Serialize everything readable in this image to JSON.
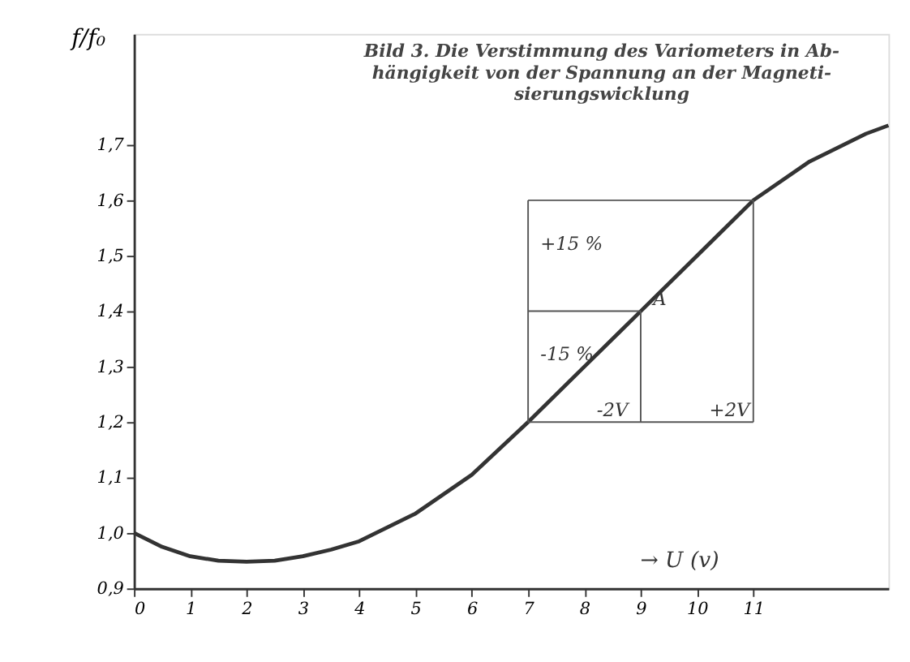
{
  "chart_data": {
    "type": "line",
    "title": "Bild 3. Die Verstimmung des Variometers in Ab-\nhängigkeit von der Spannung an der Magneti-\nsierungswicklung",
    "xlabel": "→ U (v)",
    "ylabel": "f/f₀",
    "series": [
      {
        "color": "#333333",
        "x": [
          0,
          0.5,
          1,
          1.5,
          2,
          2.5,
          3,
          3.5,
          4,
          5,
          6,
          7,
          8,
          9,
          10,
          11,
          12,
          13,
          13.4
        ],
        "values": [
          1.0,
          0.975,
          0.958,
          0.95,
          0.948,
          0.95,
          0.958,
          0.97,
          0.985,
          1.035,
          1.105,
          1.2,
          1.3,
          1.4,
          1.5,
          1.6,
          1.67,
          1.72,
          1.735
        ]
      },
      {
        "color": "#555555",
        "x": [
          7,
          11
        ],
        "values": [
          1.6,
          1.6
        ]
      },
      {
        "color": "#555555",
        "x": [
          7,
          9
        ],
        "values": [
          1.4,
          1.4
        ]
      },
      {
        "color": "#555555",
        "x": [
          7,
          11
        ],
        "values": [
          1.2,
          1.2
        ]
      },
      {
        "color": "#555555",
        "x": [
          7,
          7
        ],
        "values": [
          1.2,
          1.6
        ]
      },
      {
        "color": "#555555",
        "x": [
          9,
          9
        ],
        "values": [
          1.2,
          1.4
        ]
      },
      {
        "color": "#555555",
        "x": [
          11,
          11
        ],
        "values": [
          1.2,
          1.6
        ]
      }
    ],
    "annotations": [
      {
        "text": "A",
        "x": 9,
        "y": 1.4
      },
      {
        "text": "+15 %",
        "x": 7,
        "y": 1.5
      },
      {
        "text": "-15 %",
        "x": 7,
        "y": 1.3
      },
      {
        "text": "-2V",
        "x": 8,
        "y": 1.2
      },
      {
        "text": "+2V",
        "x": 10,
        "y": 1.2
      }
    ],
    "xlim": [
      0,
      13.4
    ],
    "xticks": [
      0,
      1,
      2,
      3,
      4,
      5,
      6,
      7,
      8,
      9,
      10,
      11
    ],
    "ylim": [
      0.9,
      1.9
    ],
    "yticks": [
      {
        "value": 0.9,
        "label": "0,9"
      },
      {
        "value": 1.0,
        "label": "1,0"
      },
      {
        "value": 1.1,
        "label": "1,1"
      },
      {
        "value": 1.2,
        "label": "1,2"
      },
      {
        "value": 1.3,
        "label": "1,3"
      },
      {
        "value": 1.4,
        "label": "1,4"
      },
      {
        "value": 1.5,
        "label": "1,5"
      },
      {
        "value": 1.6,
        "label": "1,6"
      },
      {
        "value": 1.7,
        "label": "1,7"
      }
    ],
    "grid": false,
    "marker": "none",
    "line_style": "solid"
  }
}
